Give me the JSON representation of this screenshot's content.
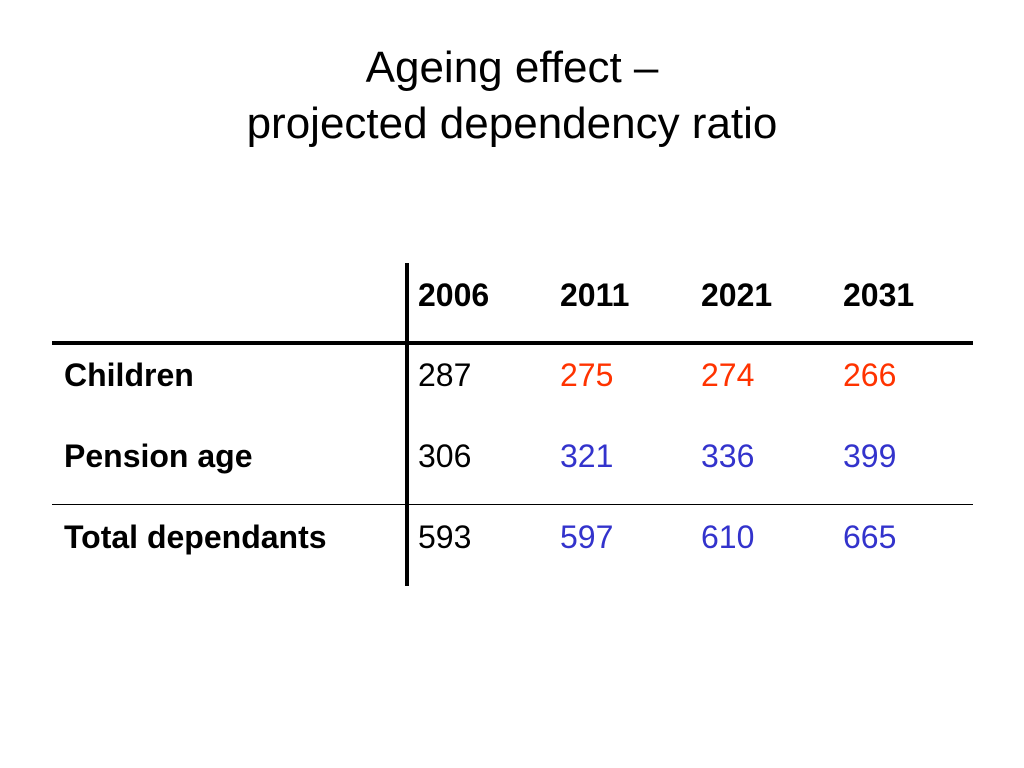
{
  "title": {
    "line1": "Ageing effect –",
    "line2": "projected dependency ratio"
  },
  "colors": {
    "text": "#000000",
    "red": "#ff3300",
    "blue": "#3333cc"
  },
  "table": {
    "columns": [
      "2006",
      "2011",
      "2021",
      "2031"
    ],
    "rows": [
      {
        "label": "Children",
        "values": [
          "287",
          "275",
          "274",
          "266"
        ],
        "value_colors": [
          "#000000",
          "#ff3300",
          "#ff3300",
          "#ff3300"
        ]
      },
      {
        "label": "Pension age",
        "values": [
          "306",
          "321",
          "336",
          "399"
        ],
        "value_colors": [
          "#000000",
          "#3333cc",
          "#3333cc",
          "#3333cc"
        ]
      },
      {
        "label": "Total dependants",
        "values": [
          "593",
          "597",
          "610",
          "665"
        ],
        "value_colors": [
          "#000000",
          "#3333cc",
          "#3333cc",
          "#3333cc"
        ]
      }
    ]
  }
}
